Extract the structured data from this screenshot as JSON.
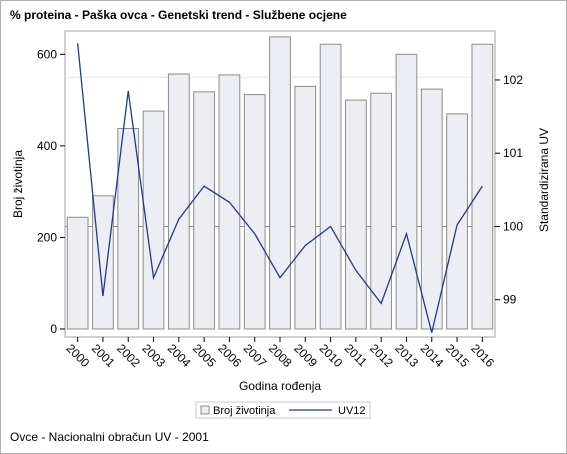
{
  "title": "% proteina - Paška ovca - Genetski trend - Službene ocjene",
  "footnote": "Ovce - Nacionalni obračun UV - 2001",
  "colors": {
    "bar_fill": "#eceef4",
    "bar_stroke": "#8c8c8c",
    "line": "#1f3a93",
    "reference_line": "#888888",
    "grid": "#e6e6e6",
    "frame": "#b0b0b0"
  },
  "chart_data": {
    "type": "bar",
    "categories": [
      "2000",
      "2001",
      "2002",
      "2003",
      "2004",
      "2005",
      "2006",
      "2007",
      "2008",
      "2009",
      "2010",
      "2011",
      "2012",
      "2013",
      "2014",
      "2015",
      "2016"
    ],
    "series": [
      {
        "name": "Broj životinja",
        "type": "bar",
        "axis": "left",
        "values": [
          244,
          291,
          438,
          476,
          557,
          518,
          555,
          512,
          638,
          530,
          622,
          500,
          515,
          600,
          524,
          470,
          622
        ]
      },
      {
        "name": "UV12",
        "type": "line",
        "axis": "right",
        "values": [
          102.5,
          99.05,
          101.85,
          99.3,
          100.1,
          100.55,
          100.33,
          99.9,
          99.3,
          99.74,
          100.0,
          99.4,
          98.95,
          99.9,
          98.55,
          100.02,
          100.55
        ]
      }
    ],
    "xlabel": "Godina rođenja",
    "ylabel_left": "Broj životinja",
    "ylabel_right": "Standardizirana UV",
    "yticks_left": [
      "0",
      "200",
      "400",
      "600"
    ],
    "yticks_right": [
      "99",
      "100",
      "101",
      "102"
    ],
    "ylim_left": [
      0,
      640
    ],
    "ylim_right": [
      98.6,
      102.6
    ],
    "reference_line_right": 100,
    "grid": false,
    "legend": [
      "Broj životinja",
      "UV12"
    ],
    "legend_position": "bottom"
  }
}
